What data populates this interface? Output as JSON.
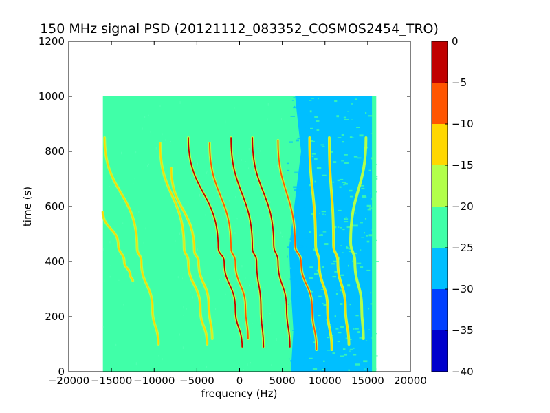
{
  "chart_data": {
    "type": "heatmap",
    "title": "150 MHz signal PSD (20121112_083352_COSMOS2454_TRO)",
    "xlabel": "frequency (Hz)",
    "ylabel": "time (s)",
    "xlim": [
      -20000,
      20000
    ],
    "ylim": [
      0,
      1200
    ],
    "xticks": [
      -20000,
      -15000,
      -10000,
      -5000,
      0,
      5000,
      10000,
      15000,
      20000
    ],
    "yticks": [
      0,
      200,
      400,
      600,
      800,
      1000,
      1200
    ],
    "data_extent": {
      "x": [
        -16000,
        16000
      ],
      "y": [
        0,
        1000
      ]
    },
    "grid": false,
    "colorbar": {
      "levels": [
        -40,
        -35,
        -30,
        -25,
        -20,
        -15,
        -10,
        -5,
        0
      ],
      "ticks": [
        0,
        -5,
        -10,
        -15,
        -20,
        -25,
        -30,
        -35,
        -40
      ],
      "colors": [
        "#0000cc",
        "#0040ff",
        "#00bfff",
        "#40ffa8",
        "#b2ff4a",
        "#ffd700",
        "#ff5500",
        "#c00000"
      ]
    },
    "background_levels": {
      "low_frequency_region": "-25 to -20",
      "high_frequency_region": "-30 to -25"
    },
    "traces": [
      {
        "top": [
          -15800,
          850
        ],
        "upper_mid": [
          -12000,
          450
        ],
        "inflection": [
          -11500,
          400
        ],
        "lower_mid": [
          -10200,
          230
        ],
        "bottom": [
          -9500,
          100
        ],
        "peak_level": "-15 to -10"
      },
      {
        "top": [
          -16000,
          580
        ],
        "upper_mid": [
          -14200,
          460
        ],
        "inflection": [
          -13500,
          400
        ],
        "lower_mid": [
          -12800,
          350
        ],
        "bottom": [
          -12500,
          330
        ],
        "peak_level": "-15 to -10"
      },
      {
        "top": [
          -9300,
          830
        ],
        "upper_mid": [
          -6500,
          450
        ],
        "inflection": [
          -6000,
          400
        ],
        "lower_mid": [
          -4600,
          230
        ],
        "bottom": [
          -3800,
          100
        ],
        "peak_level": "-15 to -10"
      },
      {
        "top": [
          -8000,
          740
        ],
        "upper_mid": [
          -5300,
          440
        ],
        "inflection": [
          -4800,
          400
        ],
        "lower_mid": [
          -3600,
          240
        ],
        "bottom": [
          -3200,
          120
        ],
        "peak_level": "-15 to -10"
      },
      {
        "top": [
          -6000,
          850
        ],
        "upper_mid": [
          -2500,
          450
        ],
        "inflection": [
          -1800,
          400
        ],
        "lower_mid": [
          -500,
          230
        ],
        "bottom": [
          300,
          90
        ],
        "peak_level": "-5 to 0"
      },
      {
        "top": [
          -3500,
          830
        ],
        "upper_mid": [
          -1000,
          450
        ],
        "inflection": [
          -500,
          400
        ],
        "lower_mid": [
          700,
          230
        ],
        "bottom": [
          1000,
          120
        ],
        "peak_level": "-10 to -5"
      },
      {
        "top": [
          -1000,
          850
        ],
        "upper_mid": [
          1500,
          450
        ],
        "inflection": [
          2000,
          400
        ],
        "lower_mid": [
          2500,
          230
        ],
        "bottom": [
          2800,
          90
        ],
        "peak_level": "-5 to 0"
      },
      {
        "top": [
          1500,
          850
        ],
        "upper_mid": [
          4000,
          460
        ],
        "inflection": [
          4500,
          400
        ],
        "lower_mid": [
          5500,
          230
        ],
        "bottom": [
          5900,
          90
        ],
        "peak_level": "-5 to 0"
      },
      {
        "top": [
          4500,
          840
        ],
        "upper_mid": [
          6500,
          460
        ],
        "inflection": [
          7200,
          400
        ],
        "lower_mid": [
          8500,
          230
        ],
        "bottom": [
          9000,
          80
        ],
        "peak_level": "-10 to -5"
      },
      {
        "top": [
          8200,
          850
        ],
        "upper_mid": [
          8900,
          460
        ],
        "inflection": [
          9300,
          400
        ],
        "lower_mid": [
          10300,
          230
        ],
        "bottom": [
          10800,
          80
        ],
        "peak_level": "-15 to -10"
      },
      {
        "top": [
          10500,
          850
        ],
        "upper_mid": [
          11000,
          460
        ],
        "inflection": [
          11500,
          400
        ],
        "lower_mid": [
          12400,
          230
        ],
        "bottom": [
          12800,
          100
        ],
        "peak_level": "-15 to -10"
      },
      {
        "top": [
          14800,
          850
        ],
        "upper_mid": [
          13000,
          470
        ],
        "inflection": [
          13500,
          400
        ],
        "lower_mid": [
          14300,
          230
        ],
        "bottom": [
          14500,
          120
        ],
        "peak_level": "-20 to -15"
      }
    ]
  }
}
